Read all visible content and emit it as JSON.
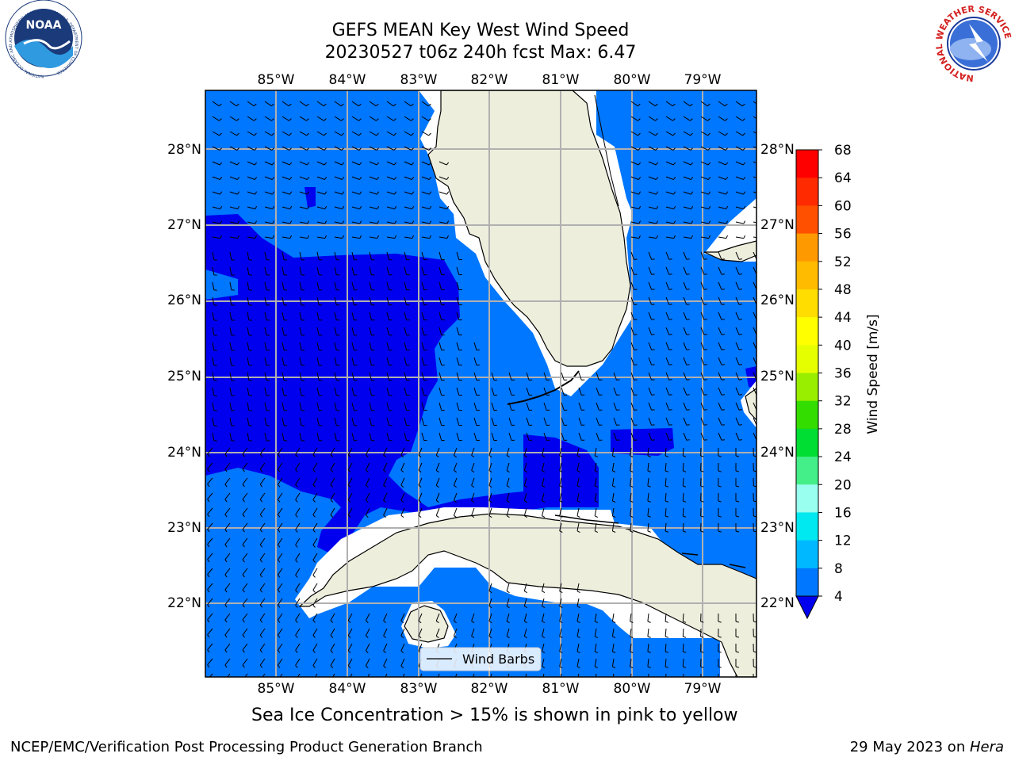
{
  "title": {
    "line1": "GEFS MEAN Key West Wind Speed",
    "line2": "20230527 t06z 240h fcst   Max: 6.47"
  },
  "axes": {
    "lon_labels": [
      "85°W",
      "84°W",
      "83°W",
      "82°W",
      "81°W",
      "80°W",
      "79°W"
    ],
    "lat_labels_left": [
      "28°N",
      "27°N",
      "26°N",
      "25°N",
      "24°N",
      "23°N",
      "22°N"
    ],
    "lat_labels_right": [
      "28°N",
      "27°N",
      "26°N",
      "25°N",
      "24°N",
      "23°N",
      "22°N"
    ]
  },
  "legend": {
    "label": "Wind Barbs"
  },
  "colorbar": {
    "label": "Wind Speed [m/s]",
    "ticks": [
      "68",
      "64",
      "60",
      "56",
      "52",
      "48",
      "44",
      "40",
      "36",
      "32",
      "28",
      "24",
      "20",
      "16",
      "12",
      "8",
      "4"
    ],
    "colors": [
      "#ff0000",
      "#ff2a00",
      "#ff5000",
      "#ff7800",
      "#ff9900",
      "#ffbb00",
      "#ffdd00",
      "#ffff00",
      "#e6ff00",
      "#c8f500",
      "#99ee00",
      "#33dd00",
      "#00dd33",
      "#44ee88",
      "#99ffee",
      "#55ffff",
      "#00e8f0",
      "#00b8ff",
      "#0077ff"
    ],
    "extend_color": "#0000ee"
  },
  "caption": "Sea Ice Concentration > 15% is shown in pink to yellow",
  "footer": {
    "left": "NCEP/EMC/Verification Post Processing Product Generation Branch",
    "right_prefix": "29 May 2023 on ",
    "right_machine": "Hera"
  },
  "logos": {
    "noaa_text": "NOAA",
    "noaa_ring": "NATIONAL OCEANIC AND ATMOSPHERIC ADMINISTRATION · U.S. DEPARTMENT OF COMMERCE",
    "nws_ring": "NATIONAL WEATHER SERVICE"
  },
  "colors": {
    "ocean_light": "#0077ff",
    "ocean_dark": "#0000ee",
    "land": "#eeeedd",
    "grid": "#b0b0b0"
  }
}
